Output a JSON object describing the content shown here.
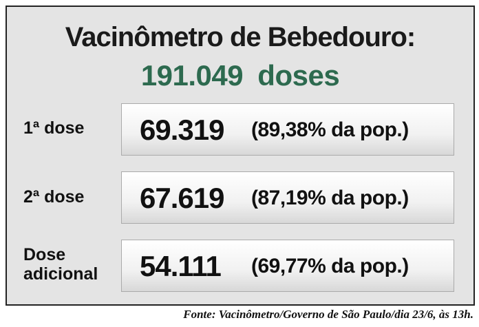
{
  "header": {
    "title": "Vacinômetro de Bebedouro:",
    "total": "191.049 doses"
  },
  "rows": [
    {
      "label": "1ª dose",
      "value": "69.319",
      "note": "(89,38% da pop.)"
    },
    {
      "label": "2ª dose",
      "value": "67.619",
      "note": "(87,19% da pop.)"
    },
    {
      "label": "Dose adicional",
      "value": "54.111",
      "note": "(69,77% da pop.)"
    }
  ],
  "source": "Fonte: Vacinômetro/Governo de São Paulo/dia 23/6, às 13h."
}
